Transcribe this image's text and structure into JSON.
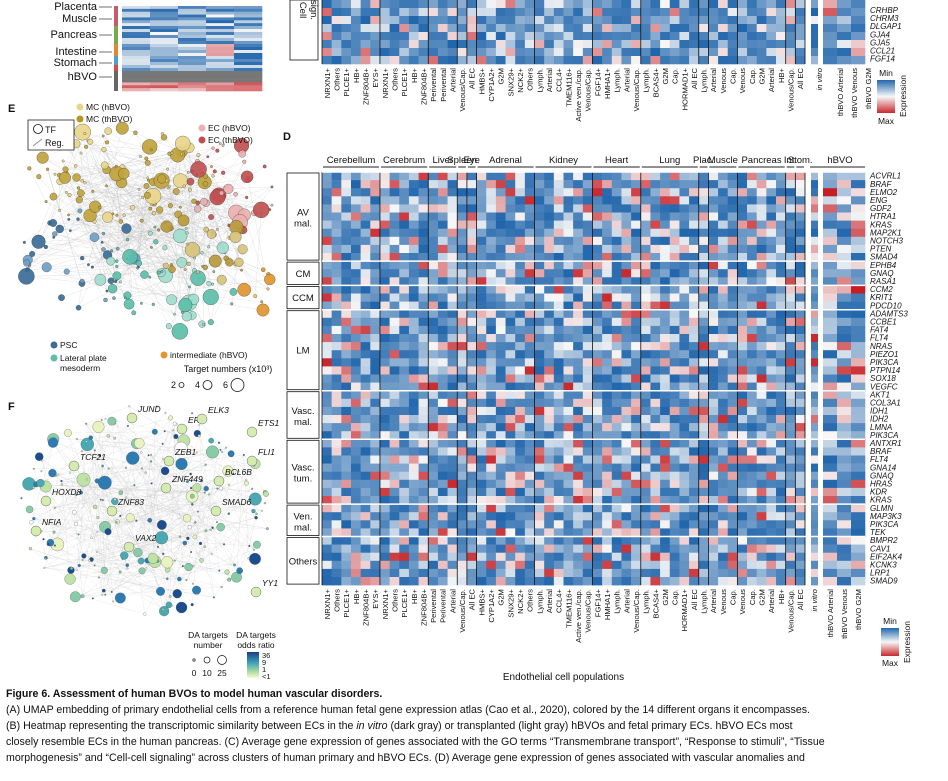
{
  "panel_letters": {
    "d": "D",
    "e": "E",
    "f": "F"
  },
  "panel_top": {
    "organ_labels": [
      "Placenta",
      "Muscle",
      "Pancreas",
      "Intestine",
      "Stomach",
      "hBVO"
    ],
    "section_label_line1": "Cell",
    "section_label_line2": "sign.",
    "genes": [
      "CRHBP",
      "CHRM3",
      "DLGAP1",
      "GJA4",
      "GJA5",
      "CCL21",
      "FGF14"
    ]
  },
  "columns": {
    "primary": [
      "NRXN1+",
      "Others",
      "PLCE1+",
      "HB+",
      "ZNF804B+",
      "EYS+",
      "NRXN1+",
      "Others",
      "PLCE1+",
      "HB+",
      "ZNF804B+",
      "Perivental",
      "Perivental",
      "Arterial",
      "Venous/Cap.",
      "All EC",
      "HMBS+",
      "CYP1A2+",
      "G2M",
      "SNX29+",
      "NCK2+",
      "Others",
      "Lymph.",
      "Arterial",
      "CCL4+",
      "TMEM116+",
      "Active ven./cap.",
      "Venous/Cap.",
      "FGF14+",
      "HMHA1+",
      "Lymph.",
      "Arterial",
      "Venous/Cap.",
      "Lymph.",
      "BCAS4+",
      "G2M",
      "Cap.",
      "HORMAD1+",
      "All EC",
      "Lymph.",
      "Arterial",
      "Venous",
      "Cap.",
      "Venous",
      "Cap.",
      "G2M",
      "Arterial",
      "HB+",
      "Venous/Cap.",
      "All EC"
    ],
    "invitro": [
      "in vitro"
    ],
    "transplanted": [
      "thBVO Arterial",
      "thBVO Venous",
      "thBVO G2M"
    ]
  },
  "panel_d": {
    "organs": [
      "Cerebellum",
      "Cerebrum",
      "Liver",
      "Spleen",
      "Eye",
      "Adrenal",
      "Kidney",
      "Heart",
      "Lung",
      "Plac.",
      "Muscle",
      "Pancreas",
      "Int.",
      "Stom."
    ],
    "organ_hbvo": "hBVO",
    "groups": [
      {
        "label_line1": "AV",
        "label_line2": "mal.",
        "genes": [
          "ACVRL1",
          "BRAF",
          "ELMO2",
          "ENG",
          "GDF2",
          "HTRA1",
          "KRAS",
          "MAP2K1",
          "NOTCH3",
          "PTEN",
          "SMAD4"
        ]
      },
      {
        "label_line1": "CM",
        "label_line2": "",
        "genes": [
          "EPHB4",
          "GNAQ",
          "RASA1"
        ]
      },
      {
        "label_line1": "CCM",
        "label_line2": "",
        "genes": [
          "CCM2",
          "KRIT1",
          "PDCD10"
        ]
      },
      {
        "label_line1": "LM",
        "label_line2": "",
        "genes": [
          "ADAMTS3",
          "CCBE1",
          "FAT4",
          "FLT4",
          "NRAS",
          "PIEZO1",
          "PIK3CA",
          "PTPN14",
          "SOX18",
          "VEGFC"
        ]
      },
      {
        "label_line1": "Vasc.",
        "label_line2": "mal.",
        "genes": [
          "AKT1",
          "COL3A1",
          "IDH1",
          "IDH2",
          "LMNA",
          "PIK3CA"
        ]
      },
      {
        "label_line1": "Vasc.",
        "label_line2": "tum.",
        "genes": [
          "ANTXR1",
          "BRAF",
          "FLT4",
          "GNA14",
          "GNAQ",
          "HRAS",
          "KDR",
          "KRAS"
        ]
      },
      {
        "label_line1": "Ven.",
        "label_line2": "mal.",
        "genes": [
          "GLMN",
          "MAP3K3",
          "PIK3CA",
          "TEK"
        ]
      },
      {
        "label_line1": "Others",
        "label_line2": "",
        "genes": [
          "BMPR2",
          "CAV1",
          "EIF2AK4",
          "KCNK3",
          "LRP1",
          "SMAD9"
        ]
      }
    ],
    "x_title": "Endothelial cell populations"
  },
  "legend_expr": {
    "min_label": "Min",
    "max_label": "Max",
    "title": "Expression"
  },
  "panel_e": {
    "tf_label": "TF",
    "reg_label": "Reg.",
    "mc_hbvo": "MC (hBVO)",
    "mc_thbvo": "MC (thBVO)",
    "ec_hbvo": "EC (hBVO)",
    "ec_thbvo": "EC (thBVO)",
    "psc": "PSC",
    "lpm_line1": "Lateral plate",
    "lpm_line2": "mesoderm",
    "intermediate": "intermediate (hBVO)",
    "target_title": "Target numbers (x10³)",
    "target_sizes": [
      "2",
      "4",
      "6"
    ]
  },
  "panel_f": {
    "genes": [
      "JUND",
      "ERG",
      "ELK3",
      "ETS1",
      "FLI1",
      "ZEB1",
      "TCF21",
      "BCL6B",
      "ZNF449",
      "SMAD6",
      "HOXD8",
      "ZNF83",
      "NFIA",
      "VAX2",
      "YY1"
    ],
    "legend_number_title_line1": "DA targets",
    "legend_number_title_line2": "number",
    "legend_number_ticks": [
      "0",
      "10",
      "25"
    ],
    "legend_or_title_line1": "DA targets",
    "legend_or_title_line2": "odds ratio",
    "legend_or_ticks": [
      "36",
      "9",
      "1",
      "<1"
    ]
  },
  "caption": {
    "title": "Figure 6. Assessment of human BVOs to model human vascular disorders.",
    "line_a": "(A) UMAP embedding of primary endothelial cells from a reference human fetal gene expression atlas (Cao et al., 2020), colored by the 14 different organs it encompasses.",
    "line_b1_pre": "(B) Heatmap representing the transcriptomic similarity between ECs in the ",
    "line_b1_em": "in vitro",
    "line_b1_post": " (dark gray) or transplanted (light gray) hBVOs and fetal primary ECs. hBVO ECs most",
    "line_b2": "closely resemble ECs in the human pancreas. (C) Average gene expression of genes associated with the GO terms “Transmembrane transport”, “Response to stimuli”, “Tissue",
    "line_b3": "morphogenesis” and “Cell-cell signaling” across clusters of human primary and hBVO ECs. (D) Average gene expression of genes associated with vascular anomalies and"
  },
  "colors": {
    "blue": "#2a6db5",
    "red": "#c9252c",
    "ochre": "#b8961f",
    "teal": "#5bbfaa",
    "orange": "#e0962e"
  }
}
